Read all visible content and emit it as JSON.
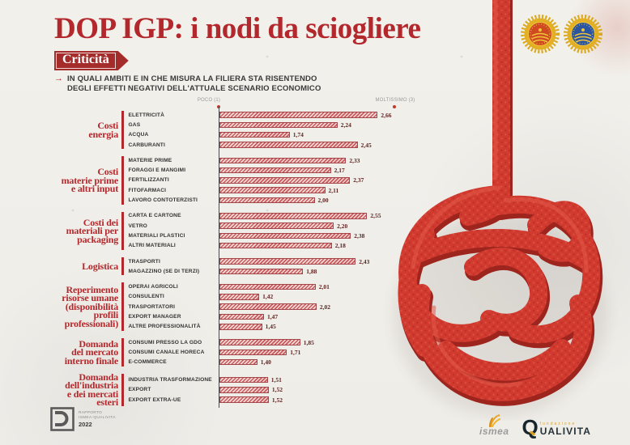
{
  "header": {
    "title": "DOP IGP: i nodi da sciogliere",
    "badge": "Criticità",
    "subtitle": {
      "arrow": "→",
      "line1": "IN QUALI AMBITI E IN CHE MISURA LA FILIERA STA RISENTENDO",
      "line2": "DEGLI EFFETTI NEGATIVI DELL'ATTUALE SCENARIO ECONOMICO"
    }
  },
  "seals": {
    "left_icon": "DOP",
    "right_icon": "IGP"
  },
  "chart_data": {
    "type": "bar",
    "orientation": "horizontal",
    "xlim": [
      1,
      3
    ],
    "scale_min_label": "POCO (1)",
    "scale_max_label": "MOLTISSIMO (3)",
    "grid": false,
    "groups": [
      {
        "category_lines": [
          "Costi",
          "energia"
        ],
        "items": [
          {
            "label": "ELETTRICITÀ",
            "value": 2.66,
            "display": "2,66"
          },
          {
            "label": "GAS",
            "value": 2.24,
            "display": "2,24"
          },
          {
            "label": "ACQUA",
            "value": 1.74,
            "display": "1,74"
          },
          {
            "label": "CARBURANTI",
            "value": 2.45,
            "display": "2,45"
          }
        ]
      },
      {
        "category_lines": [
          "Costi",
          "materie prime",
          "e altri input"
        ],
        "items": [
          {
            "label": "MATERIE PRIME",
            "value": 2.33,
            "display": "2,33"
          },
          {
            "label": "FORAGGI E MANGIMI",
            "value": 2.17,
            "display": "2,17"
          },
          {
            "label": "FERTILIZZANTI",
            "value": 2.37,
            "display": "2,37"
          },
          {
            "label": "FITOFARMACI",
            "value": 2.11,
            "display": "2,11"
          },
          {
            "label": "LAVORO CONTOTERZISTI",
            "value": 2.0,
            "display": "2,00"
          }
        ]
      },
      {
        "category_lines": [
          "Costi dei",
          "materiali per",
          "packaging"
        ],
        "items": [
          {
            "label": "CARTA E CARTONE",
            "value": 2.55,
            "display": "2,55"
          },
          {
            "label": "VETRO",
            "value": 2.2,
            "display": "2,20"
          },
          {
            "label": "MATERIALI PLASTICI",
            "value": 2.38,
            "display": "2,38"
          },
          {
            "label": "ALTRI MATERIALI",
            "value": 2.18,
            "display": "2,18"
          }
        ]
      },
      {
        "category_lines": [
          "Logistica"
        ],
        "items": [
          {
            "label": "TRASPORTI",
            "value": 2.43,
            "display": "2,43"
          },
          {
            "label": "MAGAZZINO (SE DI TERZI)",
            "value": 1.88,
            "display": "1,88"
          }
        ]
      },
      {
        "category_lines": [
          "Reperimento",
          "risorse umane",
          "(disponibilità",
          "profili",
          "professionali)"
        ],
        "items": [
          {
            "label": "OPERAI AGRICOLI",
            "value": 2.01,
            "display": "2,01"
          },
          {
            "label": "CONSULENTI",
            "value": 1.42,
            "display": "1,42"
          },
          {
            "label": "TRASPORTATORI",
            "value": 2.02,
            "display": "2,02"
          },
          {
            "label": "EXPORT MANAGER",
            "value": 1.47,
            "display": "1,47"
          },
          {
            "label": "ALTRE PROFESSIONALITÀ",
            "value": 1.45,
            "display": "1,45"
          }
        ]
      },
      {
        "category_lines": [
          "Domanda",
          "del mercato",
          "interno finale"
        ],
        "items": [
          {
            "label": "CONSUMI PRESSO LA GDO",
            "value": 1.85,
            "display": "1,85"
          },
          {
            "label": "CONSUMI CANALE HORECA",
            "value": 1.71,
            "display": "1,71"
          },
          {
            "label": "E-COMMERCE",
            "value": 1.4,
            "display": "1,40"
          }
        ]
      },
      {
        "category_lines": [
          "Domanda",
          "dell'industria",
          "e dei mercati",
          "esteri"
        ],
        "items": [
          {
            "label": "INDUSTRIA TRASFORMAZIONE",
            "value": 1.51,
            "display": "1,51"
          },
          {
            "label": "EXPORT",
            "value": 1.52,
            "display": "1,52"
          },
          {
            "label": "EXPORT EXTRA-UE",
            "value": 1.52,
            "display": "1,52"
          }
        ]
      }
    ]
  },
  "footer": {
    "report_badge": {
      "line1": "RAPPORTO",
      "line2": "ISMEA-QUALIVITA",
      "year": "2022"
    },
    "ismea_label": "ismea",
    "qualivita": {
      "initial": "Q",
      "fondazione": "fondazione",
      "name_rest": "UALIVITA"
    }
  },
  "colors": {
    "accent_red": "#b3282c",
    "bar_red": "#cb585c",
    "rope_red": "#d13a2f",
    "seal_dop_center": "#cf4a21",
    "seal_igp_center": "#2b55a0",
    "seal_gold": "#e3af25",
    "paper": "#f1efea"
  }
}
